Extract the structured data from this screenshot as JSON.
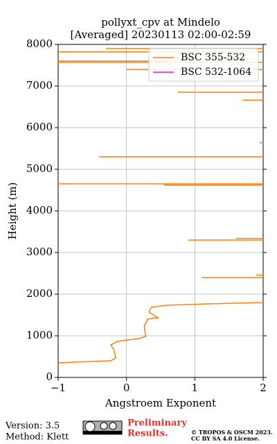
{
  "chart_data": {
    "type": "line",
    "title": "pollyxt_cpv at Mindelo",
    "subtitle": "[Averaged] 20230113 02:00-02:59",
    "x_label": "Angstroem Exponent",
    "y_label": "Height (m)",
    "xlim": [
      -1,
      2
    ],
    "xticks": [
      {
        "value": -1,
        "label": "−1"
      },
      0,
      1,
      2
    ],
    "ylim": [
      0,
      8000
    ],
    "yticks": [
      0,
      1000,
      2000,
      3000,
      4000,
      5000,
      6000,
      7000,
      8000
    ],
    "grid": true,
    "legend": "upper right",
    "series": [
      {
        "name": "BSC 355-532",
        "color": "#ff7f0e",
        "x": [
          -1,
          -0.23,
          -0.16,
          -0.18,
          -0.23,
          -0.13,
          0.18,
          0.28,
          0.26,
          0.31,
          0.46,
          0.33,
          0.36,
          0.58,
          1.19,
          2,
          null,
          1.1,
          2,
          null,
          1.9,
          2,
          null,
          0.9,
          2,
          null,
          1.6,
          2,
          null,
          0.55,
          2,
          null,
          -1,
          2,
          null,
          -0.4,
          2,
          null,
          1.95,
          2,
          null,
          1.7,
          2,
          null,
          0.75,
          2,
          null,
          0,
          2,
          null,
          -1,
          2,
          null,
          -1,
          0.6,
          null,
          -1,
          2,
          null,
          -0.3,
          2
        ],
        "values": [
          350,
          400,
          467,
          650,
          783,
          867,
          933,
          983,
          1233,
          1400,
          1433,
          1567,
          1683,
          1733,
          1767,
          1800,
          null,
          2400,
          2400,
          null,
          2460,
          2460,
          null,
          3300,
          3300,
          null,
          3340,
          3340,
          null,
          4620,
          4620,
          null,
          4650,
          4650,
          null,
          5300,
          5300,
          null,
          5640,
          5640,
          null,
          6660,
          6660,
          null,
          6850,
          6850,
          null,
          7400,
          7400,
          null,
          7570,
          7570,
          null,
          7600,
          7600,
          null,
          7820,
          7820,
          null,
          7900,
          7900
        ]
      },
      {
        "name": "BSC 532-1064",
        "color": "#ff00ff",
        "x": [],
        "values": []
      }
    ]
  },
  "footer": {
    "version": "Version: 3.5",
    "method": "Method: Klett",
    "preliminary": [
      "Preliminary",
      "Results."
    ],
    "copyright": [
      "© TROPOS & OSCM 2023.",
      "CC BY SA 4.0 License."
    ]
  }
}
